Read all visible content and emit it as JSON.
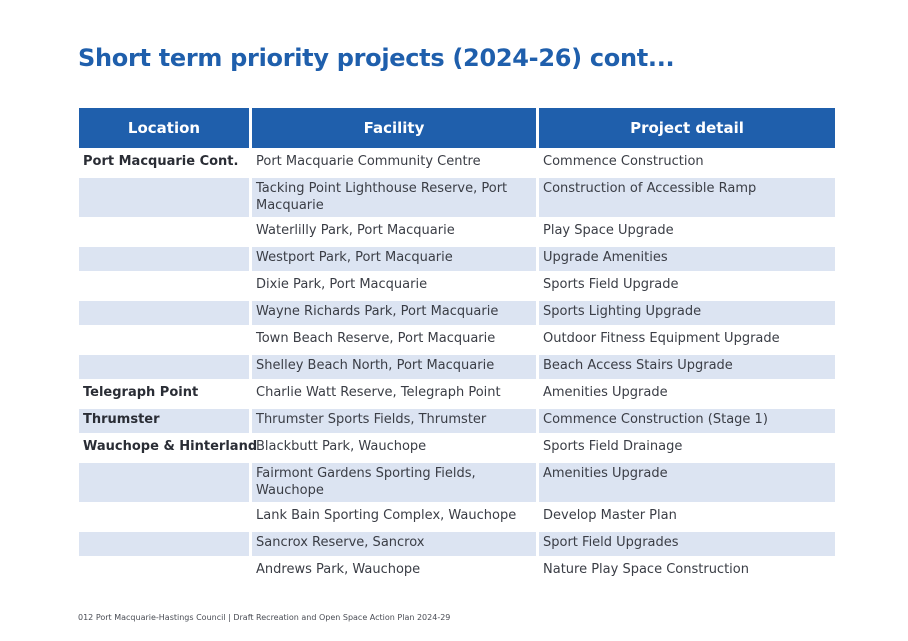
{
  "page": {
    "title": "Short term priority projects (2024-26) cont...",
    "footer": "012  Port Macquarie-Hastings Council | Draft Recreation and Open Space Action Plan 2024-29"
  },
  "table": {
    "headers": {
      "location": "Location",
      "facility": "Facility",
      "detail": "Project detail"
    },
    "rows": [
      {
        "location": "Port Macquarie Cont.",
        "facility": "Port Macquarie Community Centre",
        "detail": "Commence Construction"
      },
      {
        "location": "",
        "facility": "Tacking Point Lighthouse Reserve, Port Macquarie",
        "detail": "Construction of Accessible Ramp"
      },
      {
        "location": "",
        "facility": "Waterlilly Park, Port Macquarie",
        "detail": "Play Space Upgrade"
      },
      {
        "location": "",
        "facility": "Westport Park, Port Macquarie",
        "detail": "Upgrade Amenities"
      },
      {
        "location": "",
        "facility": "Dixie Park, Port Macquarie",
        "detail": "Sports Field Upgrade"
      },
      {
        "location": "",
        "facility": "Wayne Richards Park, Port Macquarie",
        "detail": "Sports Lighting Upgrade"
      },
      {
        "location": "",
        "facility": "Town Beach Reserve, Port Macquarie",
        "detail": "Outdoor Fitness Equipment Upgrade"
      },
      {
        "location": "",
        "facility": "Shelley Beach North, Port Macquarie",
        "detail": "Beach Access Stairs Upgrade"
      },
      {
        "location": "Telegraph Point",
        "facility": "Charlie Watt Reserve, Telegraph Point",
        "detail": "Amenities Upgrade"
      },
      {
        "location": "Thrumster",
        "facility": "Thrumster Sports Fields, Thrumster",
        "detail": "Commence Construction (Stage 1)"
      },
      {
        "location": "Wauchope & Hinterland",
        "facility": "Blackbutt Park, Wauchope",
        "detail": "Sports Field Drainage"
      },
      {
        "location": "",
        "facility": "Fairmont Gardens Sporting Fields, Wauchope",
        "detail": "Amenities Upgrade"
      },
      {
        "location": "",
        "facility": "Lank Bain Sporting Complex, Wauchope",
        "detail": "Develop Master Plan"
      },
      {
        "location": "",
        "facility": "Sancrox Reserve, Sancrox",
        "detail": "Sport Field Upgrades"
      },
      {
        "location": "",
        "facility": "Andrews Park, Wauchope",
        "detail": "Nature Play Space Construction"
      }
    ]
  }
}
